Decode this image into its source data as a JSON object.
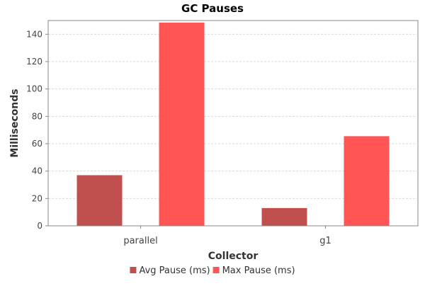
{
  "chart_data": {
    "type": "bar",
    "title": "GC Pauses",
    "xlabel": "Collector",
    "ylabel": "Milliseconds",
    "categories": [
      "parallel",
      "g1"
    ],
    "series": [
      {
        "name": "Avg Pause (ms)",
        "color": "#c0504d",
        "values": [
          37,
          13
        ]
      },
      {
        "name": "Max Pause (ms)",
        "color": "#ff5555",
        "values": [
          148.5,
          65.5
        ]
      }
    ],
    "ylim": [
      0,
      150
    ],
    "yticks": [
      0,
      20,
      40,
      60,
      80,
      100,
      120,
      140
    ],
    "grid": true,
    "legend_position": "bottom"
  }
}
